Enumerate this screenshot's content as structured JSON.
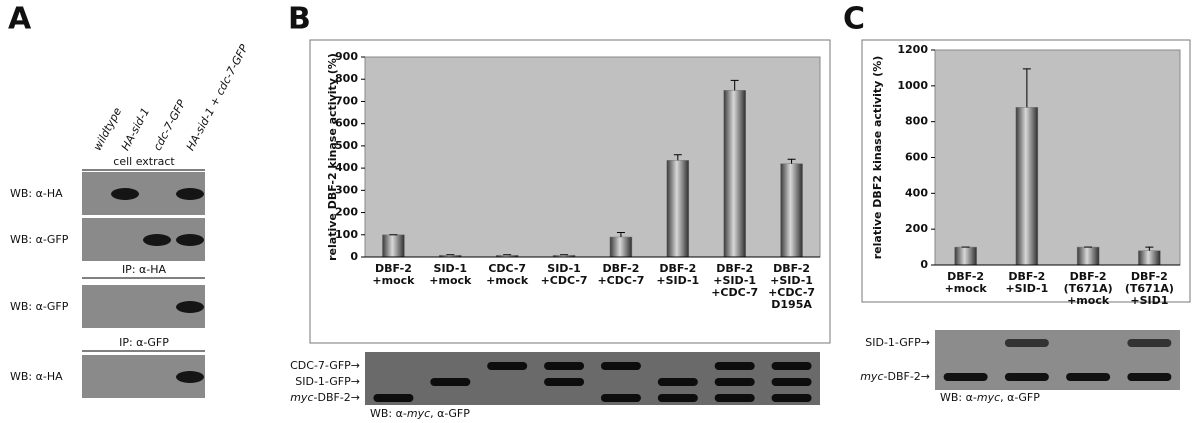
{
  "panel_a": {
    "letter": "A",
    "columns": [
      "wildtype",
      "HA-sid-1",
      "cdc-7-GFP",
      "HA-sid-1 + cdc-7-GFP"
    ],
    "sections": [
      {
        "header": "cell extract",
        "blots": [
          "WB: α-HA",
          "WB: α-GFP"
        ]
      },
      {
        "header": "IP: α-HA",
        "blots": [
          "WB: α-GFP"
        ]
      },
      {
        "header": "IP: α-GFP",
        "blots": [
          "WB: α-HA"
        ]
      }
    ]
  },
  "panel_b": {
    "letter": "B",
    "blot_labels": [
      [
        "CDC-7-GFP→"
      ],
      [
        "SID-1-GFP→"
      ],
      [
        "myc",
        "-DBF-2→"
      ]
    ],
    "blot_caption": [
      "WB: α-",
      "myc",
      ", α-GFP"
    ]
  },
  "panel_c": {
    "letter": "C",
    "blot_labels": [
      [
        "SID-1-GFP→"
      ],
      [
        "myc",
        "-DBF-2→"
      ]
    ],
    "blot_caption": [
      "WB: α-",
      "myc",
      ", α-GFP"
    ]
  },
  "chart_data": [
    {
      "type": "bar",
      "y_label": "relative DBF-2 kinase activity (%)",
      "categories": [
        [
          "DBF-2",
          "+mock"
        ],
        [
          "SID-1",
          "+mock"
        ],
        [
          "CDC-7",
          "+mock"
        ],
        [
          "SID-1",
          "+CDC-7"
        ],
        [
          "DBF-2",
          "+CDC-7"
        ],
        [
          "DBF-2",
          "+SID-1"
        ],
        [
          "DBF-2",
          "+SID-1",
          "+CDC-7"
        ],
        [
          "DBF-2",
          "+SID-1",
          "+CDC-7",
          "D195A"
        ]
      ],
      "values": [
        100,
        8,
        8,
        8,
        90,
        435,
        750,
        420
      ],
      "errors": [
        0,
        2,
        2,
        2,
        20,
        25,
        45,
        20
      ],
      "color": "#7a7a7a",
      "ylim": [
        0,
        900
      ],
      "yticks": [
        0,
        100,
        200,
        300,
        400,
        500,
        600,
        700,
        800,
        900
      ]
    },
    {
      "type": "bar",
      "y_label": "relative DBF2 kinase activity (%)",
      "categories": [
        [
          "DBF-2",
          "+mock"
        ],
        [
          "DBF-2",
          "+SID-1"
        ],
        [
          "DBF-2",
          "(T671A)",
          "+mock"
        ],
        [
          "DBF-2",
          "(T671A)",
          "+SID1"
        ]
      ],
      "values": [
        100,
        880,
        100,
        80
      ],
      "errors": [
        0,
        215,
        0,
        20
      ],
      "color": "#7a7a7a",
      "ylim": [
        0,
        1200
      ],
      "yticks": [
        0,
        200,
        400,
        600,
        800,
        1000,
        1200
      ]
    }
  ]
}
